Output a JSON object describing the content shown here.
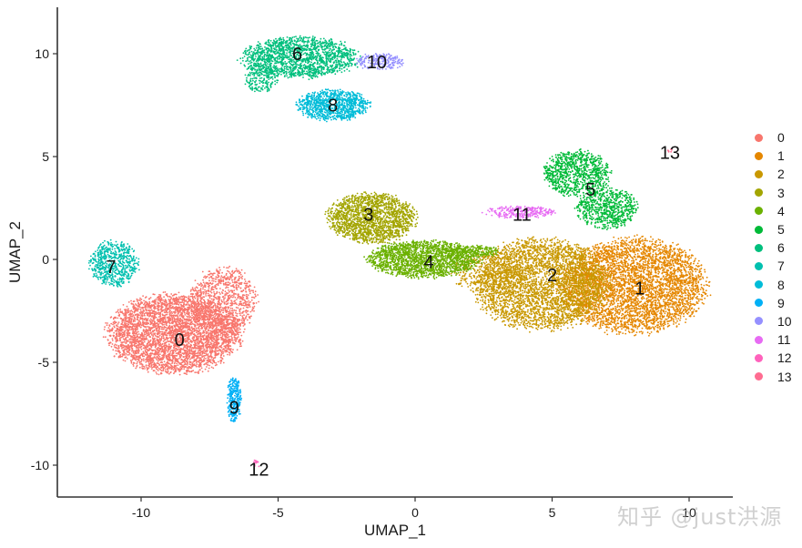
{
  "chart_data": {
    "type": "scatter",
    "title": "",
    "xlabel": "UMAP_1",
    "ylabel": "UMAP_2",
    "xlim": [
      -13.0,
      11.6
    ],
    "ylim": [
      -11.5,
      12.3
    ],
    "x_ticks": [
      -10,
      -5,
      0,
      5,
      10
    ],
    "y_ticks": [
      -10,
      -5,
      0,
      5,
      10
    ],
    "x_tick_labels": [
      "-10",
      "-5",
      "0",
      "5",
      "10"
    ],
    "y_tick_labels": [
      "-10",
      "-5",
      "0",
      "5",
      "10"
    ],
    "grid": false,
    "legend_position": "right",
    "legend_entries": [
      "0",
      "1",
      "2",
      "3",
      "4",
      "5",
      "6",
      "7",
      "8",
      "9",
      "10",
      "11",
      "12",
      "13"
    ],
    "clusters": [
      {
        "id": "0",
        "color": "#F8766D",
        "label_x": -8.6,
        "label_y": -3.9,
        "blobs": [
          [
            -8.8,
            -3.6,
            2.4,
            1.9,
            4200
          ],
          [
            -7.0,
            -2.0,
            1.2,
            1.6,
            900
          ]
        ]
      },
      {
        "id": "1",
        "color": "#E58700",
        "label_x": 8.2,
        "label_y": -1.4,
        "blobs": [
          [
            8.0,
            -1.3,
            2.6,
            2.3,
            4200
          ]
        ]
      },
      {
        "id": "2",
        "color": "#C99800",
        "label_x": 5.0,
        "label_y": -0.75,
        "blobs": [
          [
            4.6,
            -1.2,
            2.4,
            2.2,
            3600
          ],
          [
            2.6,
            -0.6,
            1.2,
            1.0,
            400
          ]
        ]
      },
      {
        "id": "3",
        "color": "#A3A500",
        "label_x": -1.7,
        "label_y": 2.2,
        "blobs": [
          [
            -1.6,
            2.0,
            1.6,
            1.2,
            1800
          ]
        ]
      },
      {
        "id": "4",
        "color": "#6BB100",
        "label_x": 0.5,
        "label_y": -0.1,
        "blobs": [
          [
            0.3,
            0.0,
            2.0,
            0.9,
            1900
          ],
          [
            2.2,
            0.4,
            0.9,
            0.3,
            200
          ]
        ]
      },
      {
        "id": "5",
        "color": "#00BA38",
        "label_x": 6.4,
        "label_y": 3.4,
        "blobs": [
          [
            5.9,
            4.2,
            1.2,
            1.1,
            900
          ],
          [
            7.0,
            2.5,
            1.1,
            1.0,
            700
          ]
        ]
      },
      {
        "id": "6",
        "color": "#00BF7D",
        "label_x": -4.3,
        "label_y": 10.0,
        "blobs": [
          [
            -4.2,
            9.8,
            2.1,
            1.0,
            1700
          ],
          [
            -5.6,
            8.8,
            0.6,
            0.7,
            200
          ]
        ]
      },
      {
        "id": "7",
        "color": "#00C0AF",
        "label_x": -11.1,
        "label_y": -0.35,
        "blobs": [
          [
            -11.0,
            -0.2,
            0.9,
            1.1,
            650
          ]
        ]
      },
      {
        "id": "8",
        "color": "#00BCD8",
        "label_x": -3.0,
        "label_y": 7.5,
        "blobs": [
          [
            -3.0,
            7.5,
            1.3,
            0.75,
            1000
          ]
        ]
      },
      {
        "id": "9",
        "color": "#00B0F6",
        "label_x": -6.6,
        "label_y": -7.2,
        "blobs": [
          [
            -6.6,
            -6.8,
            0.25,
            1.1,
            300
          ]
        ]
      },
      {
        "id": "10",
        "color": "#9590FF",
        "label_x": -1.4,
        "label_y": 9.6,
        "blobs": [
          [
            -1.3,
            9.6,
            0.9,
            0.4,
            220
          ]
        ]
      },
      {
        "id": "11",
        "color": "#E76BF3",
        "label_x": 3.9,
        "label_y": 2.2,
        "blobs": [
          [
            3.8,
            2.3,
            1.3,
            0.3,
            260
          ]
        ]
      },
      {
        "id": "12",
        "color": "#FF62BC",
        "label_x": -5.7,
        "label_y": -10.2,
        "blobs": [
          [
            -5.8,
            -9.9,
            0.15,
            0.2,
            12
          ]
        ]
      },
      {
        "id": "13",
        "color": "#FF6C91",
        "label_x": 9.3,
        "label_y": 5.2,
        "blobs": [
          [
            9.3,
            5.3,
            0.1,
            0.08,
            6
          ]
        ]
      }
    ]
  },
  "axes": {
    "x_title": "UMAP_1",
    "y_title": "UMAP_2"
  },
  "legend": {
    "items": [
      {
        "label": "0",
        "color": "#F8766D"
      },
      {
        "label": "1",
        "color": "#E58700"
      },
      {
        "label": "2",
        "color": "#C99800"
      },
      {
        "label": "3",
        "color": "#A3A500"
      },
      {
        "label": "4",
        "color": "#6BB100"
      },
      {
        "label": "5",
        "color": "#00BA38"
      },
      {
        "label": "6",
        "color": "#00BF7D"
      },
      {
        "label": "7",
        "color": "#00C0AF"
      },
      {
        "label": "8",
        "color": "#00BCD8"
      },
      {
        "label": "9",
        "color": "#00B0F6"
      },
      {
        "label": "10",
        "color": "#9590FF"
      },
      {
        "label": "11",
        "color": "#E76BF3"
      },
      {
        "label": "12",
        "color": "#FF62BC"
      },
      {
        "label": "13",
        "color": "#FF6C91"
      }
    ]
  },
  "watermark": "知乎 @just洪源"
}
